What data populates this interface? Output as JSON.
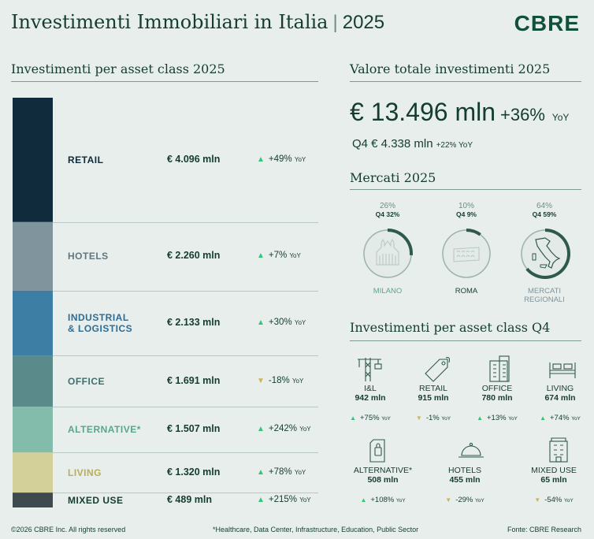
{
  "header": {
    "title": "Investimenti Immobiliari in Italia",
    "separator": "|",
    "year": "2025",
    "logo": "CBRE"
  },
  "left": {
    "section_title": "Investimenti per asset class 2025"
  },
  "chart_data": [
    {
      "type": "bar",
      "title": "Investimenti per asset class 2025",
      "stacked": true,
      "unit": "€ mln",
      "categories": [
        "RETAIL",
        "HOTELS",
        "INDUSTRIAL & LOGISTICS",
        "OFFICE",
        "ALTERNATIVE*",
        "LIVING",
        "MIXED USE"
      ],
      "values": [
        4096,
        2260,
        2133,
        1691,
        1507,
        1320,
        489
      ],
      "value_labels": [
        "€ 4.096 mln",
        "€ 2.260 mln",
        "€ 2.133 mln",
        "€ 1.691 mln",
        "€ 1.507 mln",
        "€ 1.320 mln",
        "€ 489 mln"
      ],
      "yoy_change": [
        "+49%",
        "+7%",
        "+30%",
        "-18%",
        "+242%",
        "+78%",
        "+215%"
      ],
      "direction": [
        "up",
        "up",
        "up",
        "down",
        "up",
        "up",
        "up"
      ],
      "colors": [
        "#0f2b3c",
        "#7f949c",
        "#3d7ea5",
        "#5a8a8a",
        "#84bcab",
        "#d3d09a",
        "#3f4a4f"
      ],
      "label_colors": [
        "#0f2b3c",
        "#5f7880",
        "#2f6c93",
        "#3f6e6c",
        "#5aa58e",
        "#b9ae55",
        "#143d2f"
      ]
    },
    {
      "type": "pie",
      "title": "Mercati 2025",
      "categories": [
        "MILANO",
        "ROMA",
        "MERCATI REGIONALI"
      ],
      "values": [
        26,
        10,
        64
      ],
      "share_labels": [
        "26%",
        "10%",
        "64%"
      ],
      "q4_values": [
        32,
        9,
        59
      ],
      "q4_labels": [
        "Q4 32%",
        "Q4 9%",
        "Q4 59%"
      ]
    }
  ],
  "yoy_label": "YoY",
  "total": {
    "section_title": "Valore totale investimenti 2025",
    "value": "€ 13.496 mln",
    "change": "+36%",
    "yoy": "YoY",
    "q4_value": "Q4 € 4.338 mln",
    "q4_change": "+22% YoY"
  },
  "markets": {
    "section_title": "Mercati 2025",
    "names": [
      "MILANO",
      "ROMA",
      "MERCATI",
      "REGIONALI"
    ]
  },
  "q4_classes": {
    "section_title": "Investimenti per asset class Q4",
    "items": [
      {
        "name": "I&L",
        "value": "942 mln",
        "change": "+75%",
        "dir": "up",
        "icon": "crane-icon"
      },
      {
        "name": "RETAIL",
        "value": "915 mln",
        "change": "-1%",
        "dir": "down",
        "icon": "price-tag-icon"
      },
      {
        "name": "OFFICE",
        "value": "780 mln",
        "change": "+13%",
        "dir": "up",
        "icon": "office-building-icon"
      },
      {
        "name": "LIVING",
        "value": "674 mln",
        "change": "+74%",
        "dir": "up",
        "icon": "bed-icon"
      },
      {
        "name": "ALTERNATIVE*",
        "value": "508 mln",
        "change": "+108%",
        "dir": "up",
        "icon": "data-center-icon"
      },
      {
        "name": "HOTELS",
        "value": "455 mln",
        "change": "-29%",
        "dir": "down",
        "icon": "cloche-icon"
      },
      {
        "name": "MIXED USE",
        "value": "65 mln",
        "change": "-54%",
        "dir": "down",
        "icon": "mixed-building-icon"
      }
    ]
  },
  "footer": {
    "copyright": "©2026 CBRE Inc. All rights reserved",
    "note": "*Healthcare, Data Center, Infrastructure, Education, Public Sector",
    "source": "Fonte: CBRE Research"
  },
  "colors": {
    "background": "#e8eeec",
    "brand_green": "#12503a",
    "up_arrow": "#35c27a",
    "down_arrow": "#c9b55a"
  }
}
